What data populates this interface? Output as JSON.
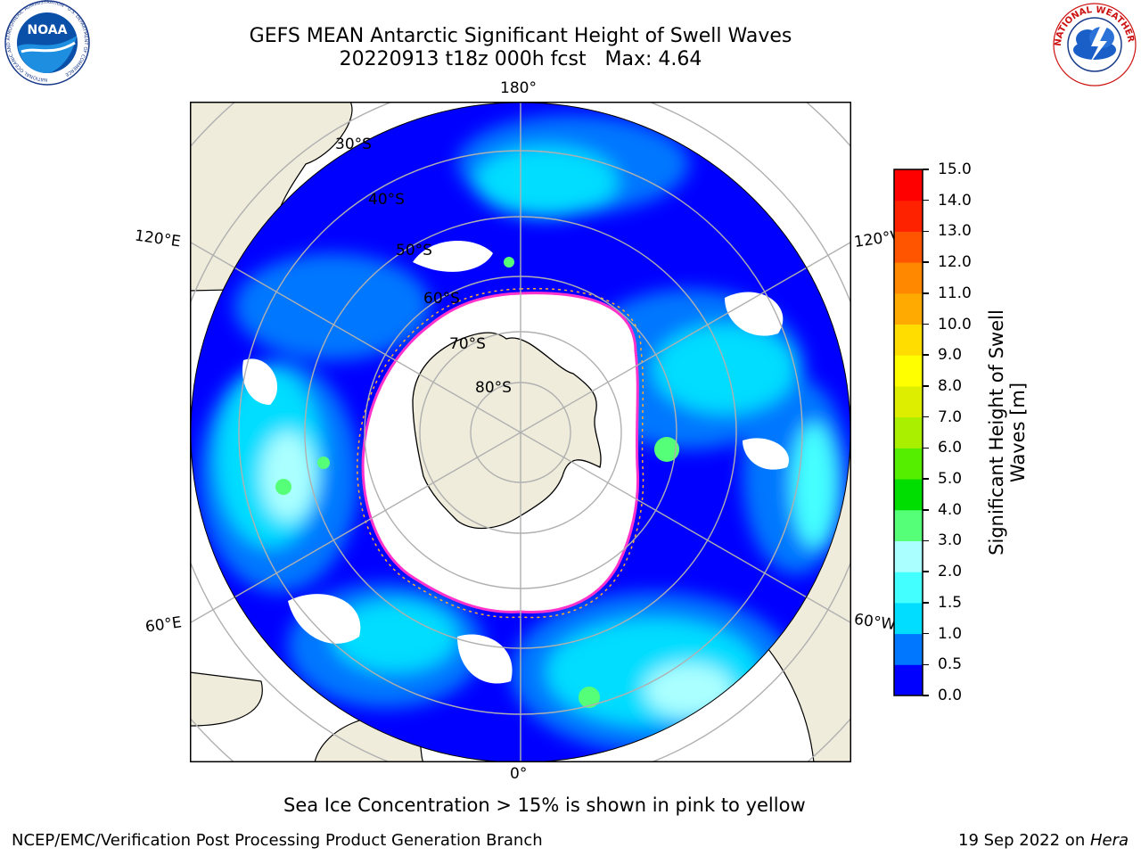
{
  "title": {
    "line1": "GEFS MEAN Antarctic Significant Height of Swell Waves",
    "line2": "20220913 t18z 000h fcst   Max: 4.64"
  },
  "map": {
    "projection": "south-polar-stereographic",
    "longitude_labels": [
      "180°",
      "120°E",
      "120°W",
      "60°E",
      "60°W",
      "0°"
    ],
    "latitude_labels": [
      "30°S",
      "40°S",
      "50°S",
      "60°S",
      "70°S",
      "80°S"
    ],
    "colors": {
      "land": "#efecdc",
      "background": "#ffffff",
      "ice_edge": "#ff33cc",
      "gridline": "#b0b0b0"
    }
  },
  "colorbar": {
    "label_line1": "Significant Height of Swell",
    "label_line2": "Waves [m]",
    "ticks": [
      "15.0",
      "14.0",
      "13.0",
      "12.0",
      "11.0",
      "10.0",
      "9.0",
      "8.0",
      "7.0",
      "6.0",
      "5.0",
      "4.0",
      "3.0",
      "2.0",
      "1.5",
      "1.0",
      "0.5",
      "0.0"
    ],
    "colors": [
      "#0000ff",
      "#0077ff",
      "#00ddff",
      "#44ffff",
      "#aaffff",
      "#55ff77",
      "#00dd00",
      "#55ee00",
      "#aaee00",
      "#ddee00",
      "#ffff00",
      "#ffdd00",
      "#ffaa00",
      "#ff8800",
      "#ff5500",
      "#ff2200",
      "#ff0000"
    ]
  },
  "annotation": "Sea Ice Concentration > 15% is shown in pink to yellow",
  "footer": {
    "left": "NCEP/EMC/Verification Post Processing Product Generation Branch",
    "right_prefix": "19 Sep 2022 on ",
    "right_host": "Hera"
  },
  "logos": {
    "left": "NOAA",
    "left_ring": "NATIONAL OCEANIC AND ATMOSPHERIC ADMINISTRATION · U.S. DEPARTMENT OF COMMERCE",
    "right_ring": "NATIONAL WEATHER SERVICE"
  }
}
